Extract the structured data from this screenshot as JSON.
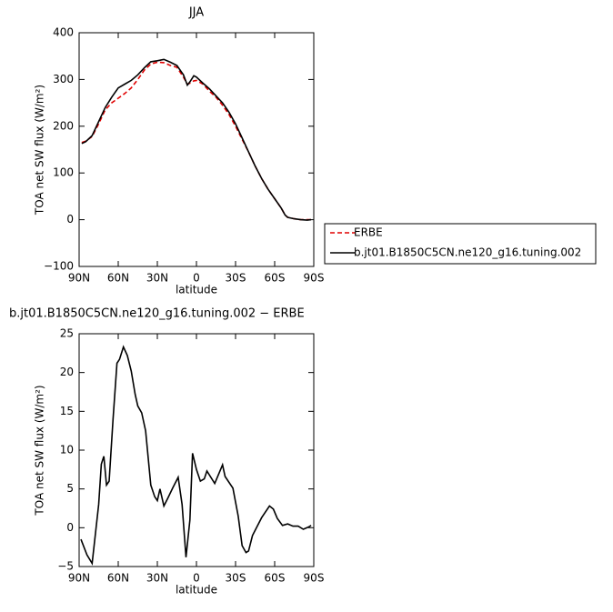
{
  "chart_data": [
    {
      "type": "line",
      "title": "JJA",
      "xlabel": "latitude",
      "ylabel": "TOA net SW flux (W/m²)",
      "x": [
        88,
        85,
        80,
        75,
        70,
        65,
        60,
        55,
        50,
        45,
        40,
        35,
        30,
        25,
        20,
        15,
        10,
        7,
        5,
        2,
        0,
        -5,
        -10,
        -15,
        -20,
        -25,
        -30,
        -35,
        -40,
        -45,
        -50,
        -55,
        -60,
        -65,
        -68,
        -70,
        -75,
        -80,
        -85,
        -88
      ],
      "series": [
        {
          "name": "ERBE",
          "color": "#e00000",
          "dash": true,
          "values": [
            165,
            168,
            178,
            205,
            235,
            250,
            260,
            270,
            282,
            300,
            320,
            333,
            337,
            336,
            330,
            326,
            305,
            290,
            292,
            297,
            298,
            290,
            275,
            262,
            245,
            225,
            200,
            172,
            145,
            115,
            88,
            65,
            45,
            25,
            10,
            5,
            2,
            0,
            0,
            0
          ]
        },
        {
          "name": "b.jt01.B1850C5CN.ne120_g16.tuning.002",
          "color": "#000000",
          "dash": false,
          "values": [
            163,
            167,
            180,
            210,
            240,
            262,
            282,
            290,
            298,
            310,
            325,
            338,
            340,
            343,
            337,
            330,
            310,
            288,
            295,
            308,
            305,
            292,
            280,
            265,
            250,
            230,
            205,
            175,
            145,
            115,
            88,
            65,
            45,
            25,
            10,
            5,
            2,
            0,
            -1,
            0
          ]
        }
      ],
      "xlim": [
        90,
        -90
      ],
      "xticks": [
        {
          "value": 90,
          "label": "90N"
        },
        {
          "value": 60,
          "label": "60N"
        },
        {
          "value": 30,
          "label": "30N"
        },
        0,
        {
          "value": -30,
          "label": "30S"
        },
        {
          "value": -60,
          "label": "60S"
        },
        {
          "value": -90,
          "label": "90S"
        }
      ],
      "ylim": [
        -100,
        400
      ],
      "yticks": [
        {
          "value": -100,
          "label": "−100"
        },
        0,
        100,
        200,
        300,
        400
      ],
      "legend": "right"
    },
    {
      "type": "line",
      "title": "b.jt01.B1850C5CN.ne120_g16.tuning.002 − ERBE",
      "xlabel": "latitude",
      "ylabel": "TOA net SW flux (W/m²)",
      "x": [
        88.6,
        84,
        80,
        75,
        73,
        71,
        69,
        67,
        64,
        61,
        59,
        56,
        53,
        50,
        47,
        45,
        42,
        39,
        35,
        32,
        30,
        28,
        25,
        22,
        18,
        14,
        11,
        8,
        5,
        3,
        0,
        -3,
        -6,
        -8,
        -14,
        -20,
        -22,
        -28,
        -32,
        -35,
        -38,
        -40,
        -43,
        -50,
        -56,
        -59,
        -62,
        -66,
        -70,
        -74,
        -78,
        -82,
        -86,
        -88
      ],
      "color": "#000000",
      "values": [
        -1.5,
        -3.5,
        -4.6,
        3,
        8.2,
        9.2,
        5.5,
        6,
        14,
        21.2,
        21.7,
        23.3,
        22.2,
        20.2,
        17.2,
        15.7,
        14.8,
        12.5,
        5.5,
        4,
        3.5,
        5,
        2.8,
        3.8,
        5.2,
        6.5,
        3,
        -3.8,
        1,
        9.6,
        7.5,
        6,
        6.3,
        7.3,
        5.7,
        8.1,
        6.6,
        5.1,
        1.5,
        -2.3,
        -3.2,
        -3,
        -1,
        1.3,
        2.8,
        2.4,
        1.2,
        0.3,
        0.5,
        0.2,
        0.2,
        -0.2,
        0.1,
        0.3
      ],
      "xlim": [
        90,
        -90
      ],
      "xticks": [
        {
          "value": 90,
          "label": "90N"
        },
        {
          "value": 60,
          "label": "60N"
        },
        {
          "value": 30,
          "label": "30N"
        },
        0,
        {
          "value": -30,
          "label": "30S"
        },
        {
          "value": -60,
          "label": "60S"
        },
        {
          "value": -90,
          "label": "90S"
        }
      ],
      "ylim": [
        -5,
        25
      ],
      "yticks": [
        {
          "value": -5,
          "label": "−5"
        },
        0,
        5,
        10,
        15,
        20,
        25
      ]
    }
  ]
}
